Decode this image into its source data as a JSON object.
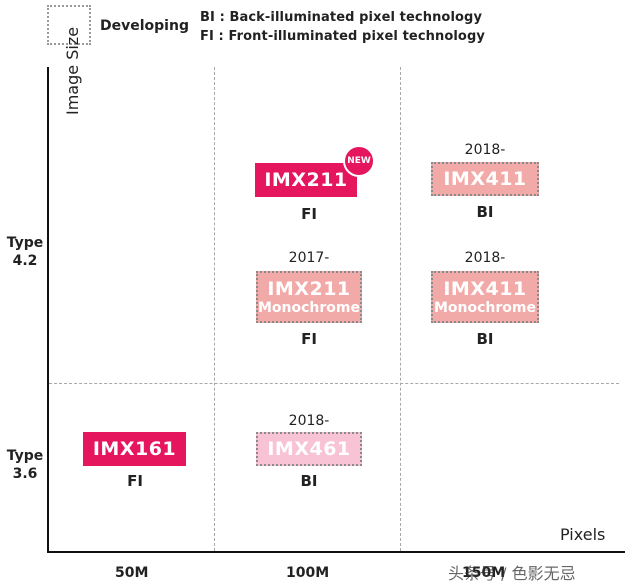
{
  "legend": {
    "developing_label": "Developing",
    "bi_line": "BI : Back-illuminated pixel technology",
    "fi_line": "FI : Front-illuminated pixel technology"
  },
  "axes": {
    "y_label": "Image Size",
    "x_label": "Pixels",
    "y_categories": [
      {
        "line1": "Type",
        "line2": "4.2"
      },
      {
        "line1": "Type",
        "line2": "3.6"
      }
    ],
    "x_ticks": [
      "50M",
      "100M",
      "150M"
    ]
  },
  "sensors": [
    {
      "name": "IMX211",
      "sub": "",
      "year": "",
      "tech": "FI",
      "status": "current",
      "badge": "NEW"
    },
    {
      "name": "IMX411",
      "sub": "",
      "year": "2018-",
      "tech": "BI",
      "status": "developing"
    },
    {
      "name": "IMX211",
      "sub": "Monochrome",
      "year": "2017-",
      "tech": "FI",
      "status": "developing"
    },
    {
      "name": "IMX411",
      "sub": "Monochrome",
      "year": "2018-",
      "tech": "BI",
      "status": "developing"
    },
    {
      "name": "IMX161",
      "sub": "",
      "year": "",
      "tech": "FI",
      "status": "current"
    },
    {
      "name": "IMX461",
      "sub": "",
      "year": "2018-",
      "tech": "BI",
      "status": "developing"
    }
  ],
  "watermark": "头条号 / 色影无忌",
  "colors": {
    "current": "#e5155e",
    "developing": "#f2aaa8",
    "developing_alt": "#f8c3d4"
  }
}
